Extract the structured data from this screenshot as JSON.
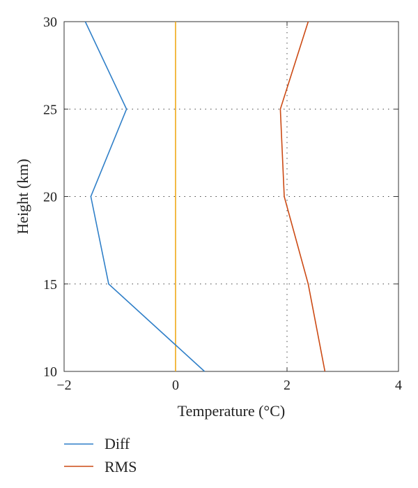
{
  "chart_data": {
    "type": "line",
    "xlabel": "Temperature (°C)",
    "ylabel": "Height (km)",
    "xlim": [
      -2,
      4
    ],
    "ylim": [
      10,
      30
    ],
    "xticks": [
      -2,
      0,
      2,
      4
    ],
    "xtick_labels": [
      "−2",
      "0",
      "2",
      "4"
    ],
    "yticks": [
      10,
      15,
      20,
      25,
      30
    ],
    "ytick_labels": [
      "10",
      "15",
      "20",
      "25",
      "30"
    ],
    "grid": "dotted",
    "legend_position": "below",
    "series": [
      {
        "name": "Diff",
        "color": "#2f7fc8",
        "x": [
          0.52,
          -1.2,
          -1.52,
          -0.88,
          -1.62
        ],
        "y": [
          10,
          15,
          20,
          25,
          30
        ]
      },
      {
        "name": "RMS",
        "color": "#cc4a14",
        "x": [
          2.68,
          2.38,
          1.95,
          1.88,
          2.38
        ],
        "y": [
          10,
          15,
          20,
          25,
          30
        ]
      },
      {
        "name": "",
        "color": "#f0a818",
        "x": [
          0,
          0
        ],
        "y": [
          10,
          30
        ]
      }
    ]
  }
}
